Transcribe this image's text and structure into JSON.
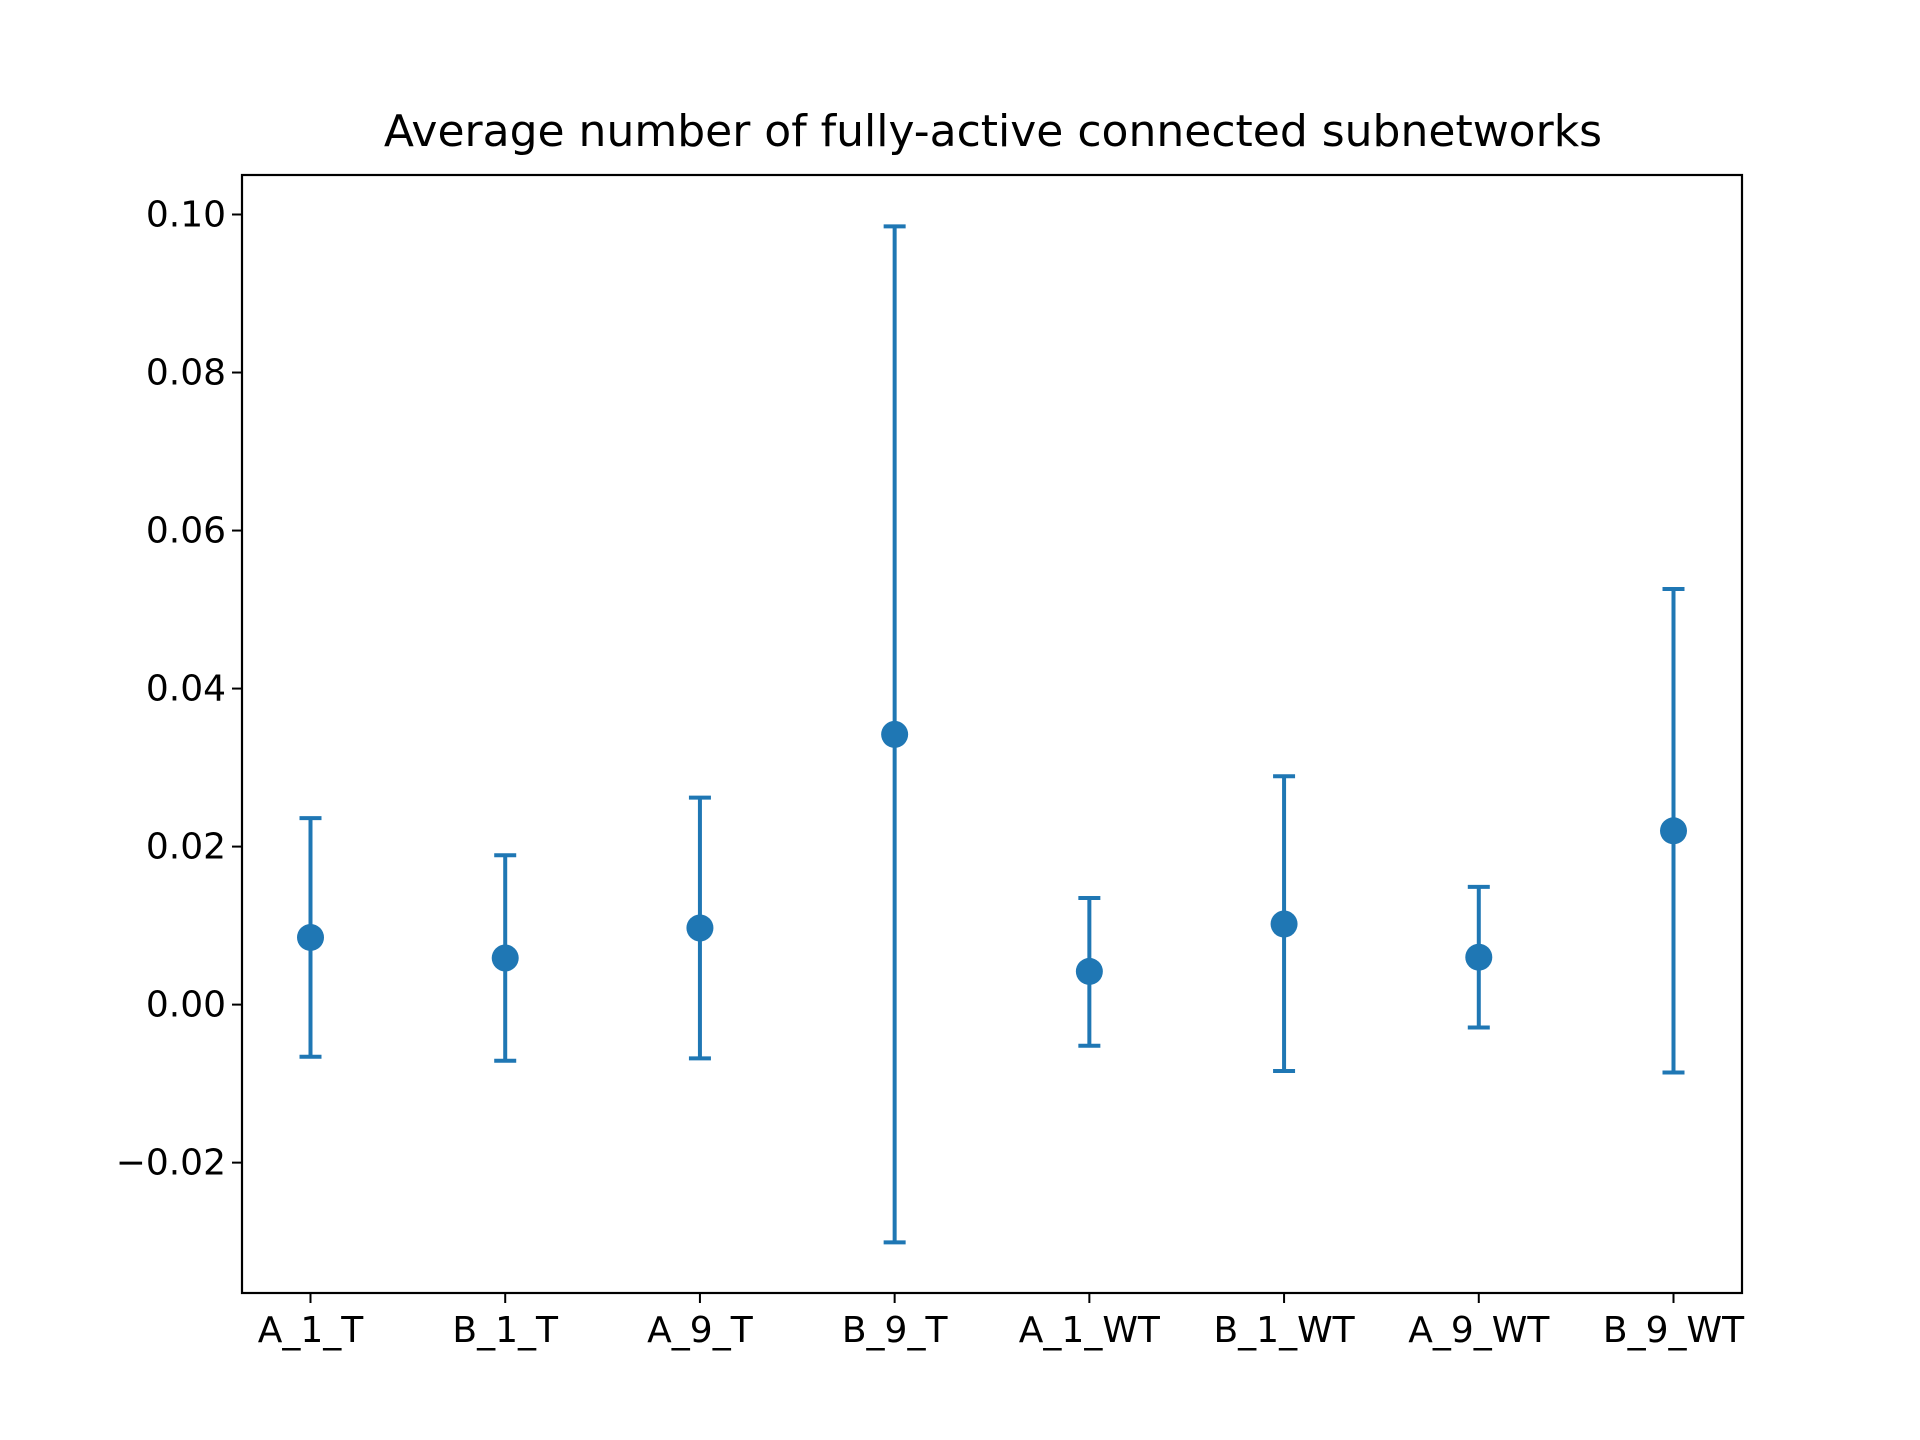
{
  "chart_data": {
    "type": "errorbar",
    "title": "Average number of fully-active connected subnetworks",
    "xlabel": "",
    "ylabel": "",
    "categories": [
      "A_1_T",
      "B_1_T",
      "A_9_T",
      "B_9_T",
      "A_1_WT",
      "B_1_WT",
      "A_9_WT",
      "B_9_WT"
    ],
    "series": [
      {
        "values": [
          0.0085,
          0.0059,
          0.0097,
          0.0342,
          0.0042,
          0.0102,
          0.006,
          0.022
        ],
        "lower": [
          -0.0066,
          -0.0071,
          -0.0068,
          -0.0301,
          -0.0052,
          -0.0084,
          -0.0029,
          -0.0086
        ],
        "upper": [
          0.0236,
          0.0189,
          0.0262,
          0.0985,
          0.0135,
          0.0289,
          0.0149,
          0.0526
        ],
        "color": "#1f77b4"
      }
    ],
    "ylim": [
      -0.0365,
      0.105
    ],
    "yticks": [
      -0.02,
      0.0,
      0.02,
      0.04,
      0.06,
      0.08,
      0.1
    ],
    "ytick_labels": [
      "−0.02",
      "0.00",
      "0.02",
      "0.04",
      "0.06",
      "0.08",
      "0.10"
    ],
    "grid": false,
    "legend": "none"
  }
}
